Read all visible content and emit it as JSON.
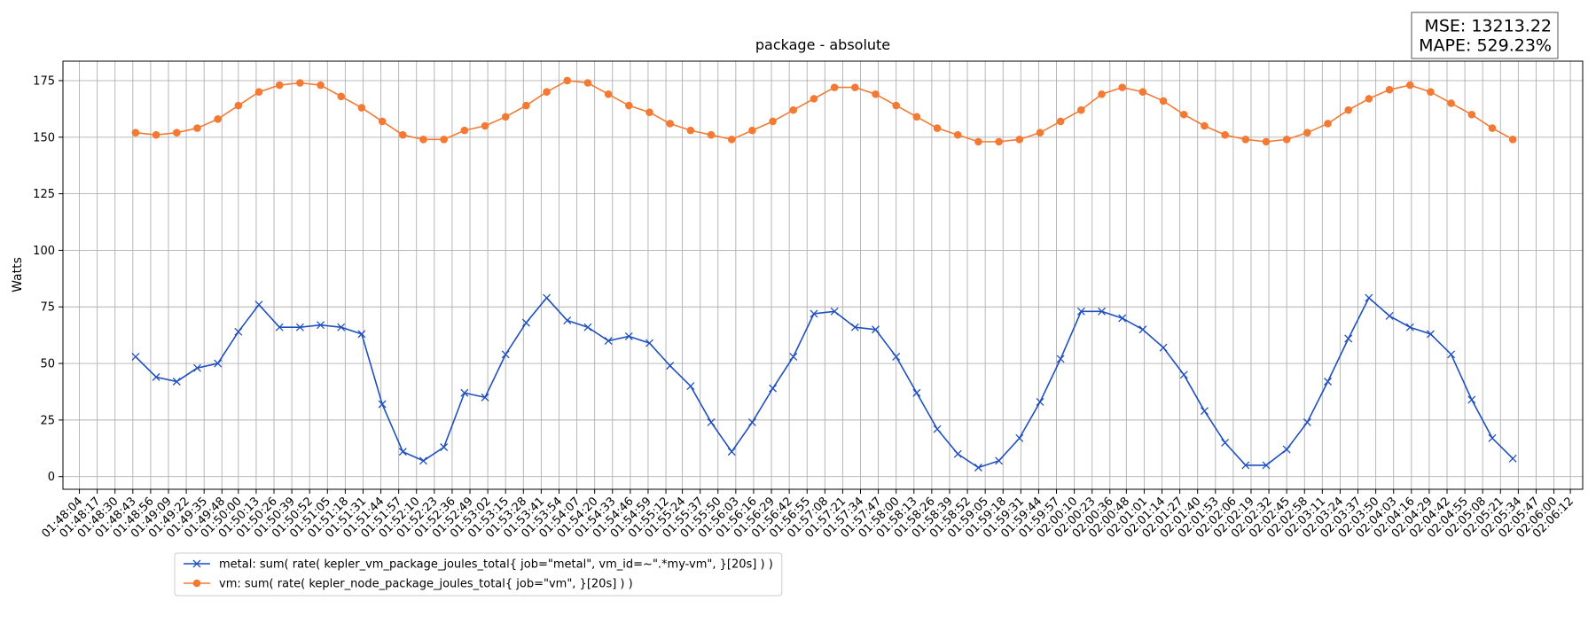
{
  "chart_data": {
    "type": "line",
    "title": "package - absolute",
    "y_label": "Watts",
    "annotations": [
      "MSE: 13213.22",
      "MAPE: 529.23%"
    ],
    "grid": true,
    "legend_position": "bottom-left-outside",
    "xlim": [
      "01:47:52",
      "02:06:21"
    ],
    "xticks": [
      "01:48:04",
      "01:48:17",
      "01:48:30",
      "01:48:43",
      "01:48:56",
      "01:49:09",
      "01:49:22",
      "01:49:35",
      "01:49:48",
      "01:50:00",
      "01:50:13",
      "01:50:26",
      "01:50:39",
      "01:50:52",
      "01:51:05",
      "01:51:18",
      "01:51:31",
      "01:51:44",
      "01:51:57",
      "01:52:10",
      "01:52:23",
      "01:52:36",
      "01:52:49",
      "01:53:02",
      "01:53:15",
      "01:53:28",
      "01:53:41",
      "01:53:54",
      "01:54:07",
      "01:54:20",
      "01:54:33",
      "01:54:46",
      "01:54:59",
      "01:55:12",
      "01:55:24",
      "01:55:37",
      "01:55:50",
      "01:56:03",
      "01:56:16",
      "01:56:29",
      "01:56:42",
      "01:56:55",
      "01:57:08",
      "01:57:21",
      "01:57:34",
      "01:57:47",
      "01:58:00",
      "01:58:13",
      "01:58:26",
      "01:58:39",
      "01:58:52",
      "01:59:05",
      "01:59:18",
      "01:59:31",
      "01:59:44",
      "01:59:57",
      "02:00:10",
      "02:00:23",
      "02:00:36",
      "02:00:48",
      "02:01:01",
      "02:01:14",
      "02:01:27",
      "02:01:40",
      "02:01:53",
      "02:02:06",
      "02:02:19",
      "02:02:32",
      "02:02:45",
      "02:02:58",
      "02:03:11",
      "02:03:24",
      "02:03:37",
      "02:03:50",
      "02:04:03",
      "02:04:16",
      "02:04:29",
      "02:04:42",
      "02:04:55",
      "02:05:08",
      "02:05:21",
      "02:05:34",
      "02:05:47",
      "02:06:00",
      "02:06:12"
    ],
    "ylim": [
      -5.6,
      183.6
    ],
    "yticks": [
      0,
      25,
      50,
      75,
      100,
      125,
      150,
      175
    ],
    "x": [
      "01:48:45",
      "01:49:00",
      "01:49:15",
      "01:49:30",
      "01:49:45",
      "01:50:00",
      "01:50:15",
      "01:50:30",
      "01:50:45",
      "01:51:00",
      "01:51:15",
      "01:51:30",
      "01:51:45",
      "01:52:00",
      "01:52:15",
      "01:52:30",
      "01:52:45",
      "01:53:00",
      "01:53:15",
      "01:53:30",
      "01:53:45",
      "01:54:00",
      "01:54:15",
      "01:54:30",
      "01:54:45",
      "01:55:00",
      "01:55:15",
      "01:55:30",
      "01:55:45",
      "01:56:00",
      "01:56:15",
      "01:56:30",
      "01:56:45",
      "01:57:00",
      "01:57:15",
      "01:57:30",
      "01:57:45",
      "01:58:00",
      "01:58:15",
      "01:58:30",
      "01:58:45",
      "01:59:00",
      "01:59:15",
      "01:59:30",
      "01:59:45",
      "02:00:00",
      "02:00:15",
      "02:00:30",
      "02:00:45",
      "02:01:00",
      "02:01:15",
      "02:01:30",
      "02:01:45",
      "02:02:00",
      "02:02:15",
      "02:02:30",
      "02:02:45",
      "02:03:00",
      "02:03:15",
      "02:03:30",
      "02:03:45",
      "02:04:00",
      "02:04:15",
      "02:04:30",
      "02:04:45",
      "02:05:00",
      "02:05:15",
      "02:05:30"
    ],
    "series": [
      {
        "name": "metal: sum( rate( kepler_vm_package_joules_total{ job=\"metal\", vm_id=~\".*my-vm\", }[20s] ) )",
        "color": "#1f4fc0",
        "marker": "x",
        "values": [
          53,
          44,
          42,
          48,
          50,
          64,
          76,
          66,
          66,
          67,
          66,
          63,
          32,
          11,
          7,
          13,
          37,
          35,
          54,
          68,
          79,
          69,
          66,
          60,
          62,
          59,
          49,
          40,
          24,
          11,
          24,
          39,
          53,
          72,
          73,
          66,
          65,
          53,
          37,
          21,
          10,
          4,
          7,
          17,
          33,
          52,
          73,
          73,
          70,
          65,
          57,
          45,
          29,
          15,
          5,
          5,
          12,
          24,
          42,
          61,
          79,
          71,
          66,
          63,
          54,
          34,
          17,
          8
        ]
      },
      {
        "name": "vm: sum( rate( kepler_node_package_joules_total{ job=\"vm\", }[20s] ) )",
        "color": "#f47a33",
        "marker": "o",
        "values": [
          152,
          151,
          152,
          154,
          158,
          164,
          170,
          173,
          174,
          173,
          168,
          163,
          157,
          151,
          149,
          149,
          153,
          155,
          159,
          164,
          170,
          175,
          174,
          169,
          164,
          161,
          156,
          153,
          151,
          149,
          153,
          157,
          162,
          167,
          172,
          172,
          169,
          164,
          159,
          154,
          151,
          148,
          148,
          149,
          152,
          157,
          162,
          169,
          172,
          170,
          166,
          160,
          155,
          151,
          149,
          148,
          149,
          152,
          156,
          162,
          167,
          171,
          173,
          170,
          165,
          160,
          154,
          149
        ]
      }
    ]
  }
}
